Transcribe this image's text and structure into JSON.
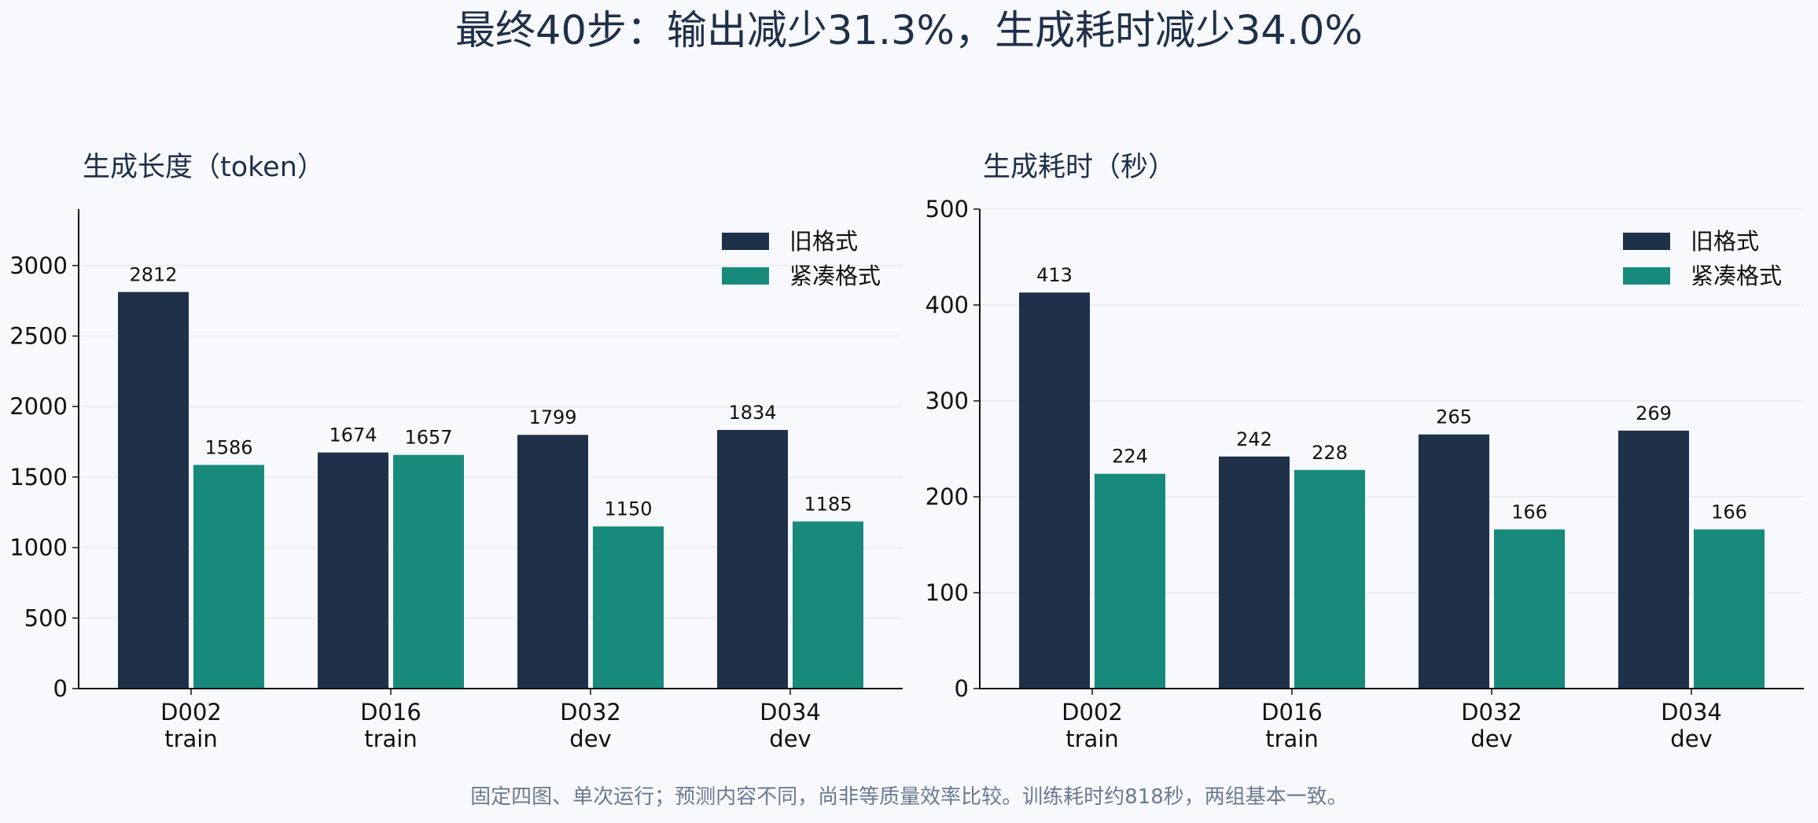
{
  "figure": {
    "title": "最终40步：输出减少31.3%，生成耗时减少34.0%",
    "footnote": "固定四图、单次运行；预测内容不同，尚非等质量效率比较。训练耗时约818秒，两组基本一致。"
  },
  "colors": {
    "old_format": "#1f3049",
    "compact_format": "#178a7b",
    "grid": "#e6e9ef",
    "axis": "#111111",
    "background": "#f7f9fc"
  },
  "chart_data": [
    {
      "type": "bar",
      "title": "生成长度（token）",
      "categories": [
        "D002\ntrain",
        "D016\ntrain",
        "D032\ndev",
        "D034\ndev"
      ],
      "series": [
        {
          "name": "旧格式",
          "values": [
            2812,
            1674,
            1799,
            1834
          ]
        },
        {
          "name": "紧凑格式",
          "values": [
            1586,
            1657,
            1150,
            1185
          ]
        }
      ],
      "ylim": [
        0,
        3400
      ],
      "yticks": [
        0,
        500,
        1000,
        1500,
        2000,
        2500,
        3000
      ],
      "grid": true,
      "legend_position": "top-right",
      "xlabel": "",
      "ylabel": ""
    },
    {
      "type": "bar",
      "title": "生成耗时（秒）",
      "categories": [
        "D002\ntrain",
        "D016\ntrain",
        "D032\ndev",
        "D034\ndev"
      ],
      "series": [
        {
          "name": "旧格式",
          "values": [
            413,
            242,
            265,
            269
          ]
        },
        {
          "name": "紧凑格式",
          "values": [
            224,
            228,
            166,
            166
          ]
        }
      ],
      "ylim": [
        0,
        500
      ],
      "yticks": [
        0,
        100,
        200,
        300,
        400,
        500
      ],
      "grid": true,
      "legend_position": "top-right",
      "xlabel": "",
      "ylabel": ""
    }
  ]
}
